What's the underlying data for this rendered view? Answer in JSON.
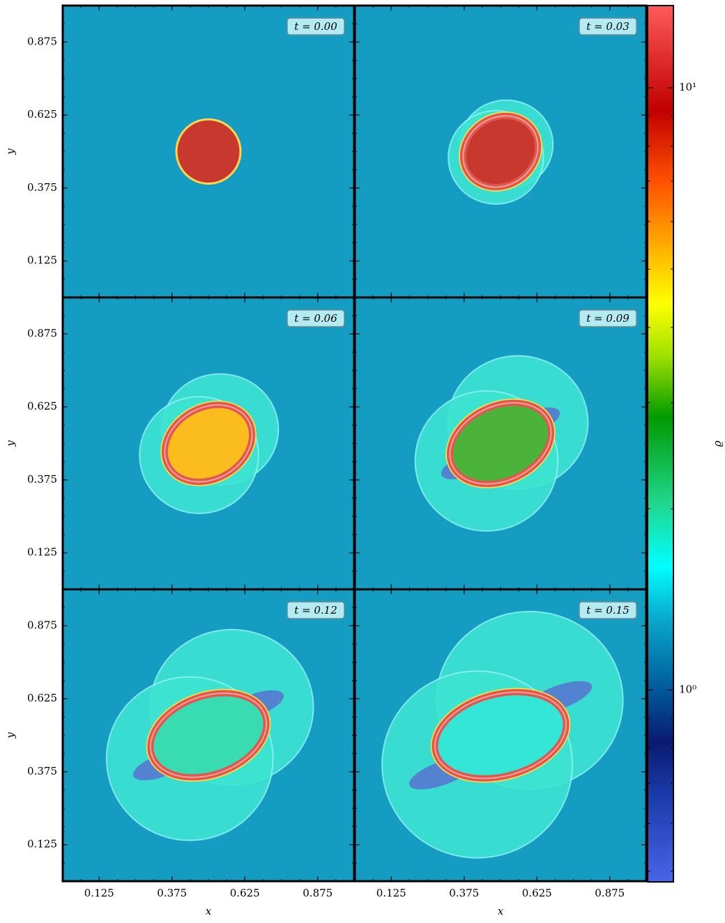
{
  "chart_data": {
    "type": "heatmap",
    "panels": [
      {
        "label": "t = 0.00"
      },
      {
        "label": "t = 0.03"
      },
      {
        "label": "t = 0.06"
      },
      {
        "label": "t = 0.09"
      },
      {
        "label": "t = 0.12"
      },
      {
        "label": "t = 0.15"
      }
    ],
    "x_label": "x",
    "y_label": "y",
    "xlim": [
      0,
      1
    ],
    "ylim": [
      0,
      1
    ],
    "xticks": [
      0.125,
      0.375,
      0.625,
      0.875
    ],
    "yticks": [
      0.125,
      0.375,
      0.625,
      0.875
    ],
    "colorbar": {
      "label": "ϱ",
      "scale": "log",
      "clim": [
        0.48,
        13.7
      ],
      "ticks": [
        {
          "value": 1,
          "label": "10⁰"
        },
        {
          "value": 10,
          "label": "10¹"
        }
      ]
    }
  }
}
